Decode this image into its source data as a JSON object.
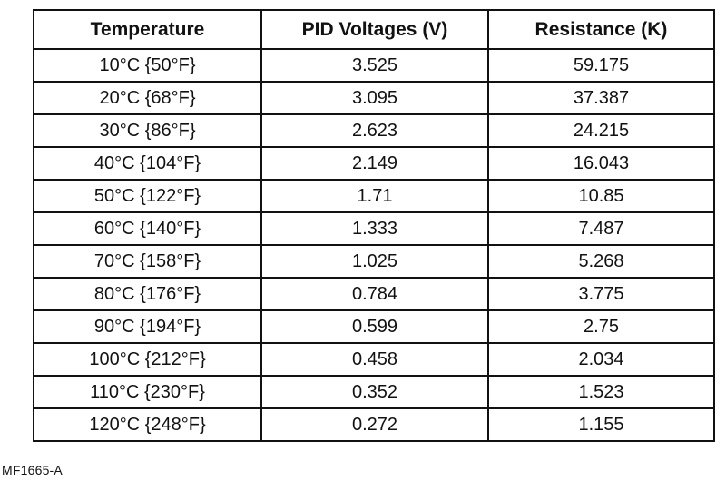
{
  "table": {
    "headers": [
      "Temperature",
      "PID Voltages (V)",
      "Resistance (K)"
    ],
    "rows": [
      [
        "10°C {50°F}",
        "3.525",
        "59.175"
      ],
      [
        "20°C {68°F}",
        "3.095",
        "37.387"
      ],
      [
        "30°C {86°F}",
        "2.623",
        "24.215"
      ],
      [
        "40°C {104°F}",
        "2.149",
        "16.043"
      ],
      [
        "50°C {122°F}",
        "1.71",
        "10.85"
      ],
      [
        "60°C {140°F}",
        "1.333",
        "7.487"
      ],
      [
        "70°C {158°F}",
        "1.025",
        "5.268"
      ],
      [
        "80°C {176°F}",
        "0.784",
        "3.775"
      ],
      [
        "90°C {194°F}",
        "0.599",
        "2.75"
      ],
      [
        "100°C {212°F}",
        "0.458",
        "2.034"
      ],
      [
        "110°C {230°F}",
        "0.352",
        "1.523"
      ],
      [
        "120°C {248°F}",
        "0.272",
        "1.155"
      ]
    ]
  },
  "figure_code": "MF1665-A"
}
